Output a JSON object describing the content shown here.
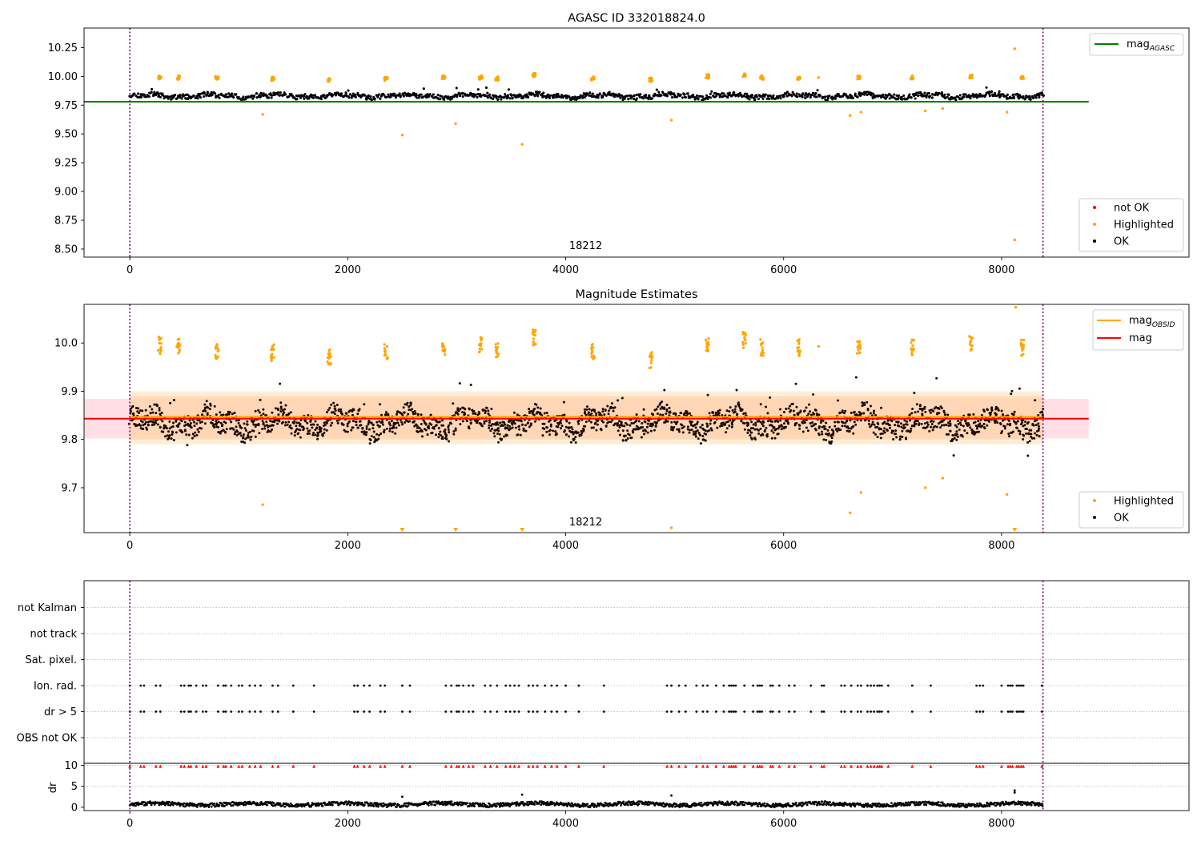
{
  "chart_data": [
    {
      "type": "scatter",
      "title": "AGASC ID 332018824.0",
      "xlabel": "",
      "ylabel": "",
      "xlim": [
        -420,
        9720
      ],
      "ylim": [
        8.43,
        10.42
      ],
      "x_ticks": [
        0,
        2000,
        4000,
        6000,
        8000
      ],
      "y_ticks": [
        8.5,
        8.75,
        9.0,
        9.25,
        9.5,
        9.75,
        10.0,
        10.25
      ],
      "y_tick_labels": [
        "8.50",
        "8.75",
        "9.00",
        "9.25",
        "9.50",
        "9.75",
        "10.00",
        "10.25"
      ],
      "vlines": [
        0,
        8380
      ],
      "obsid_label": {
        "x": 4000,
        "text": "18212"
      },
      "hlines": [
        {
          "name": "mag",
          "subscript": "AGASC",
          "y": 9.78,
          "x_range": [
            -420,
            8800
          ],
          "color": "#008000"
        }
      ],
      "legend_lines": [
        {
          "label": "mag",
          "sub": "AGASC",
          "color": "#008000"
        }
      ],
      "legend_points": [
        {
          "label": "not OK",
          "color": "#ff0000"
        },
        {
          "label": "Highlighted",
          "color": "#ffa500"
        },
        {
          "label": "OK",
          "color": "#000000"
        }
      ],
      "series": [
        {
          "name": "OK",
          "color": "#000000",
          "baseline": 9.83,
          "amplitude": 0.04,
          "spread": 0.025,
          "x_range": [
            0,
            8380
          ],
          "step": 7
        },
        {
          "name": "Highlighted",
          "color": "#ffa500",
          "clusters": [
            [
              275,
              9.99
            ],
            [
              445,
              9.99
            ],
            [
              800,
              9.99
            ],
            [
              1310,
              9.98
            ],
            [
              1830,
              9.97
            ],
            [
              2350,
              9.98
            ],
            [
              2880,
              9.99
            ],
            [
              3220,
              9.99
            ],
            [
              3370,
              9.98
            ],
            [
              3710,
              10.01
            ],
            [
              4250,
              9.98
            ],
            [
              4780,
              9.97
            ],
            [
              5300,
              10.0
            ],
            [
              5640,
              10.01
            ],
            [
              5800,
              9.99
            ],
            [
              6140,
              9.99
            ],
            [
              6690,
              9.99
            ],
            [
              7180,
              9.99
            ],
            [
              7720,
              10.0
            ],
            [
              8190,
              9.99
            ]
          ],
          "outliers": [
            [
              1220,
              9.67
            ],
            [
              2500,
              9.49
            ],
            [
              2990,
              9.59
            ],
            [
              3600,
              9.41
            ],
            [
              4970,
              9.62
            ],
            [
              6320,
              9.99
            ],
            [
              6610,
              9.66
            ],
            [
              6710,
              9.69
            ],
            [
              7300,
              9.7
            ],
            [
              7460,
              9.72
            ],
            [
              8050,
              9.69
            ],
            [
              8120,
              10.24
            ],
            [
              8120,
              8.58
            ]
          ]
        }
      ]
    },
    {
      "type": "scatter",
      "title": "Magnitude Estimates",
      "xlabel": "",
      "ylabel": "",
      "xlim": [
        -420,
        9720
      ],
      "ylim": [
        9.607,
        10.08
      ],
      "x_ticks": [
        0,
        2000,
        4000,
        6000,
        8000
      ],
      "y_ticks": [
        9.7,
        9.8,
        9.9,
        10.0
      ],
      "y_tick_labels": [
        "9.7",
        "9.8",
        "9.9",
        "10.0"
      ],
      "vlines": [
        0,
        8380
      ],
      "obsid_label": {
        "x": 4000,
        "text": "18212"
      },
      "bands": [
        {
          "y_range": [
            9.802,
            9.884
          ],
          "x_range": [
            -420,
            8800
          ],
          "color": "#ffc0cb"
        },
        {
          "y_range": [
            9.79,
            9.9
          ],
          "x_range": [
            0,
            8380
          ],
          "color": "#ffe0b2"
        },
        {
          "y_range": [
            9.8,
            9.89
          ],
          "x_range": [
            0,
            8380
          ],
          "color": "#ffcfa8"
        }
      ],
      "hlines": [
        {
          "name": "mag",
          "subscript": "OBSID",
          "y": 9.847,
          "x_range": [
            0,
            8380
          ],
          "color": "#ffa500"
        },
        {
          "name": "mag",
          "y": 9.843,
          "x_range": [
            -420,
            8800
          ],
          "color": "#ff0000"
        }
      ],
      "legend_lines": [
        {
          "label": "mag",
          "sub": "OBSID",
          "color": "#ffa500"
        },
        {
          "label": "mag",
          "sub": "",
          "color": "#ff0000"
        }
      ],
      "legend_points": [
        {
          "label": "Highlighted",
          "color": "#ffa500"
        },
        {
          "label": "OK",
          "color": "#000000"
        }
      ],
      "series": [
        {
          "name": "OK",
          "color": "#1a0a00",
          "baseline": 9.835,
          "amplitude": 0.045,
          "spread": 0.028,
          "x_range": [
            0,
            8380
          ],
          "step": 4
        },
        {
          "name": "Highlighted",
          "color": "#ffa500",
          "clusters": [
            [
              275,
              9.995
            ],
            [
              445,
              9.995
            ],
            [
              800,
              9.98
            ],
            [
              1310,
              9.98
            ],
            [
              1830,
              9.97
            ],
            [
              2350,
              9.98
            ],
            [
              2880,
              9.99
            ],
            [
              3220,
              9.995
            ],
            [
              3370,
              9.985
            ],
            [
              3710,
              10.01
            ],
            [
              4250,
              9.98
            ],
            [
              4780,
              9.965
            ],
            [
              5300,
              10.0
            ],
            [
              5640,
              10.005
            ],
            [
              5800,
              9.99
            ],
            [
              6140,
              9.99
            ],
            [
              6690,
              9.99
            ],
            [
              7180,
              9.99
            ],
            [
              7720,
              10.0
            ],
            [
              8190,
              9.99
            ]
          ],
          "outliers": [
            [
              1220,
              9.665
            ],
            [
              4970,
              9.617
            ],
            [
              6320,
              9.993
            ],
            [
              6610,
              9.648
            ],
            [
              6710,
              9.69
            ],
            [
              7300,
              9.7
            ],
            [
              7460,
              9.72
            ],
            [
              8050,
              9.686
            ],
            [
              8130,
              10.074
            ]
          ],
          "triangles": [
            2500,
            2990,
            3600,
            8120
          ]
        }
      ]
    },
    {
      "type": "scatter",
      "title": "",
      "xlim": [
        -420,
        9720
      ],
      "x_ticks": [
        0,
        2000,
        4000,
        6000,
        8000
      ],
      "vlines": [
        0,
        8380
      ],
      "categories": [
        "OBS not OK",
        "dr > 5",
        "Ion. rad.",
        "Sat. pixel.",
        "not track",
        "not Kalman"
      ],
      "flag_positions_x": [
        0,
        100,
        130,
        240,
        280,
        470,
        500,
        540,
        560,
        610,
        670,
        700,
        810,
        860,
        880,
        930,
        1000,
        1030,
        1100,
        1150,
        1200,
        1310,
        1360,
        1500,
        1690,
        2060,
        2090,
        2150,
        2200,
        2300,
        2340,
        2500,
        2570,
        2900,
        2950,
        3000,
        3020,
        3060,
        3110,
        3150,
        3260,
        3310,
        3370,
        3450,
        3490,
        3530,
        3570,
        3660,
        3700,
        3740,
        3810,
        3870,
        3920,
        4000,
        4120,
        4350,
        4930,
        4970,
        5040,
        5100,
        5200,
        5260,
        5300,
        5380,
        5450,
        5500,
        5520,
        5540,
        5560,
        5640,
        5720,
        5760,
        5780,
        5800,
        5880,
        5900,
        5960,
        6050,
        6100,
        6250,
        6350,
        6370,
        6530,
        6560,
        6620,
        6680,
        6710,
        6770,
        6800,
        6830,
        6860,
        6880,
        6900,
        6960,
        7180,
        7350,
        7770,
        7800,
        7830,
        8000,
        8060,
        8080,
        8100,
        8140,
        8160,
        8180,
        8200,
        8370
      ],
      "dr_panel": {
        "ylabel": "dr",
        "y_ticks": [
          0,
          5,
          10
        ],
        "ylim": [
          -0.8,
          10.5
        ],
        "baseline": 0.7,
        "spikes": [
          [
            2500,
            2.5
          ],
          [
            3600,
            3.0
          ],
          [
            4970,
            2.8
          ],
          [
            8120,
            3.5
          ],
          [
            8120,
            4.0
          ]
        ],
        "red_marker_y": 9.8
      }
    }
  ]
}
